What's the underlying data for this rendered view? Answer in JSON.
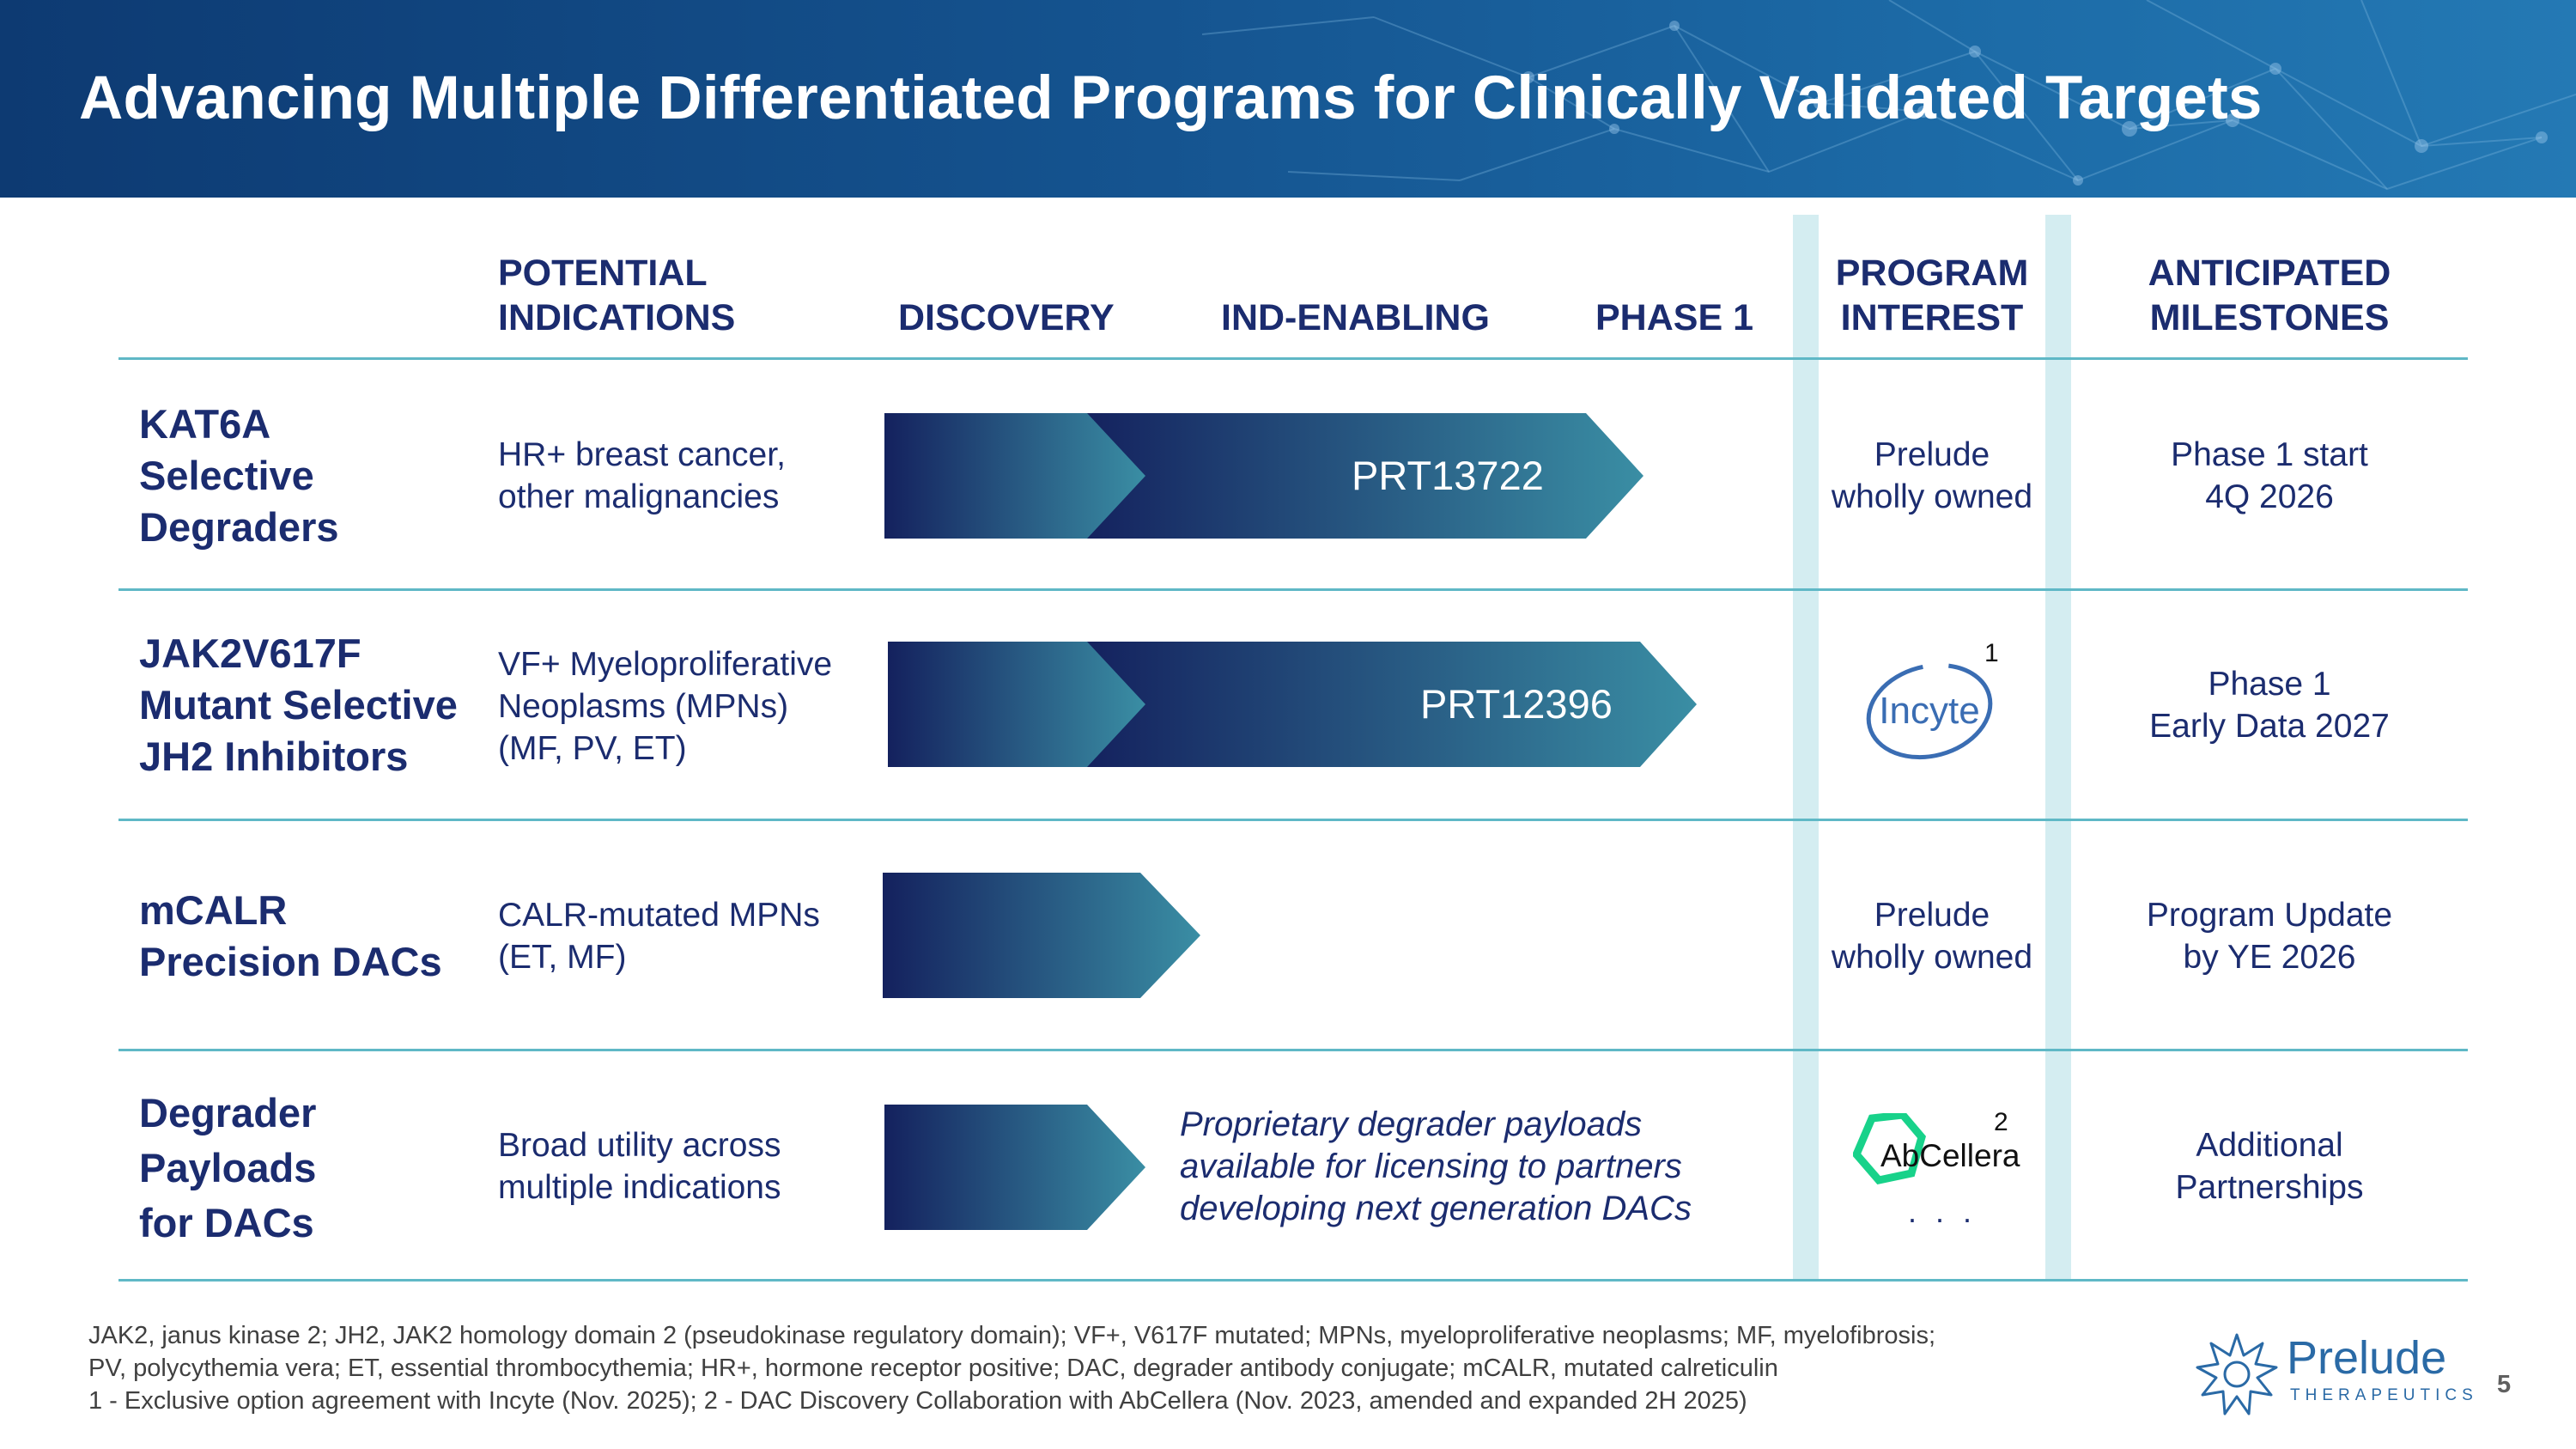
{
  "title": "Advancing Multiple Differentiated Programs for Clinically Validated Targets",
  "columns": {
    "indications": [
      "POTENTIAL",
      "INDICATIONS"
    ],
    "discovery": "DISCOVERY",
    "ind_enabling": "IND-ENABLING",
    "phase1": "PHASE 1",
    "interest": [
      "PROGRAM",
      "INTEREST"
    ],
    "milestones": [
      "ANTICIPATED",
      "MILESTONES"
    ]
  },
  "rows": [
    {
      "name": [
        "KAT6A",
        "Selective",
        "Degraders"
      ],
      "indications": [
        "HR+ breast cancer,",
        "other malignancies"
      ],
      "program": "PRT13722",
      "stage_progress": 0.85,
      "interest": [
        "Prelude",
        "wholly owned"
      ],
      "milestone": [
        "Phase 1 start",
        "4Q 2026"
      ]
    },
    {
      "name": [
        "JAK2V617F",
        "Mutant Selective",
        "JH2 Inhibitors"
      ],
      "indications": [
        "VF+ Myeloproliferative",
        "Neoplasms (MPNs)",
        "(MF, PV, ET)"
      ],
      "program": "PRT12396",
      "stage_progress": 0.91,
      "interest_logo": "Incyte",
      "interest_footnote": "1",
      "milestone": [
        "Phase 1",
        "Early Data 2027"
      ]
    },
    {
      "name": [
        "mCALR",
        "Precision DACs"
      ],
      "indications": [
        "CALR-mutated MPNs",
        "(ET, MF)"
      ],
      "program": "",
      "stage_progress": 0.35,
      "interest": [
        "Prelude",
        "wholly owned"
      ],
      "milestone": [
        "Program Update",
        "by YE 2026"
      ]
    },
    {
      "name": [
        "Degrader",
        "Payloads",
        "for DACs"
      ],
      "indications": [
        "Broad utility across",
        "multiple indications"
      ],
      "program": "",
      "stage_progress": 0.29,
      "note": [
        "Proprietary degrader payloads",
        "available for licensing to partners",
        "developing next generation DACs"
      ],
      "interest_logo": "AbCellera",
      "interest_footnote": "2",
      "interest_more": ". . .",
      "milestone": [
        "Additional",
        "Partnerships"
      ]
    }
  ],
  "footnotes": [
    "JAK2, janus kinase 2; JH2, JAK2 homology domain 2 (pseudokinase regulatory domain); VF+, V617F mutated; MPNs, myeloproliferative neoplasms; MF, myelofibrosis;",
    "PV, polycythemia vera; ET, essential thrombocythemia; HR+, hormone receptor positive; DAC, degrader antibody conjugate; mCALR, mutated calreticulin",
    "1 - Exclusive option agreement with Incyte (Nov. 2025); 2 - DAC Discovery Collaboration with AbCellera (Nov. 2023, amended and expanded 2H 2025)"
  ],
  "brand": {
    "name": "Prelude",
    "tagline": "THERAPEUTICS"
  },
  "page_number": "5",
  "colors": {
    "navy": "#1b2c6f",
    "arrow_dark": "#14215e",
    "arrow_light": "#3a8ea4",
    "rule": "#5fb8c6",
    "band": "#d4edf1",
    "abcellera_green": "#18d28a",
    "incyte_blue": "#3a6db3"
  }
}
